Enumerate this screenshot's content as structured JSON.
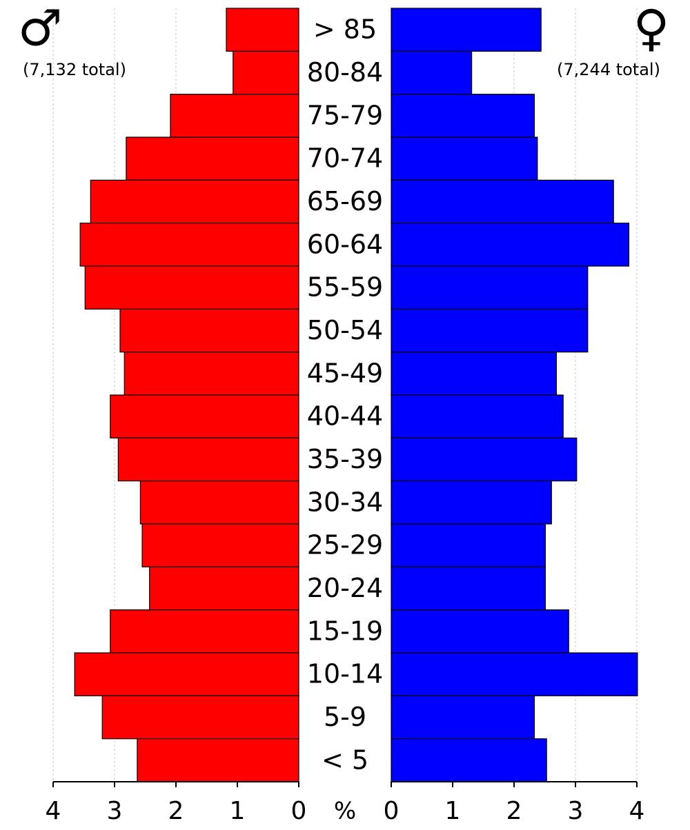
{
  "chart_data": {
    "type": "pyramid",
    "categories": [
      "> 85",
      "80-84",
      "75-79",
      "70-74",
      "65-69",
      "60-64",
      "55-59",
      "50-54",
      "45-49",
      "40-44",
      "35-39",
      "30-34",
      "25-29",
      "20-24",
      "15-19",
      "10-14",
      "5-9",
      "< 5"
    ],
    "series": [
      {
        "name": "♂",
        "note": "(7,132 total)",
        "color": "#ff0000",
        "side": "left",
        "values": [
          1.18,
          1.07,
          2.09,
          2.81,
          3.39,
          3.56,
          3.48,
          2.91,
          2.84,
          3.07,
          2.94,
          2.58,
          2.55,
          2.43,
          3.07,
          3.65,
          3.2,
          2.63
        ]
      },
      {
        "name": "♀",
        "note": "(7,244 total)",
        "color": "#0000ff",
        "side": "right",
        "values": [
          2.44,
          1.31,
          2.33,
          2.38,
          3.62,
          3.87,
          3.2,
          3.2,
          2.69,
          2.8,
          3.02,
          2.61,
          2.51,
          2.51,
          2.89,
          4.01,
          2.33,
          2.53
        ]
      }
    ],
    "xlim": [
      0,
      4
    ],
    "xticks": [
      0,
      1,
      2,
      3,
      4
    ],
    "x_label": "%",
    "grid": true
  }
}
